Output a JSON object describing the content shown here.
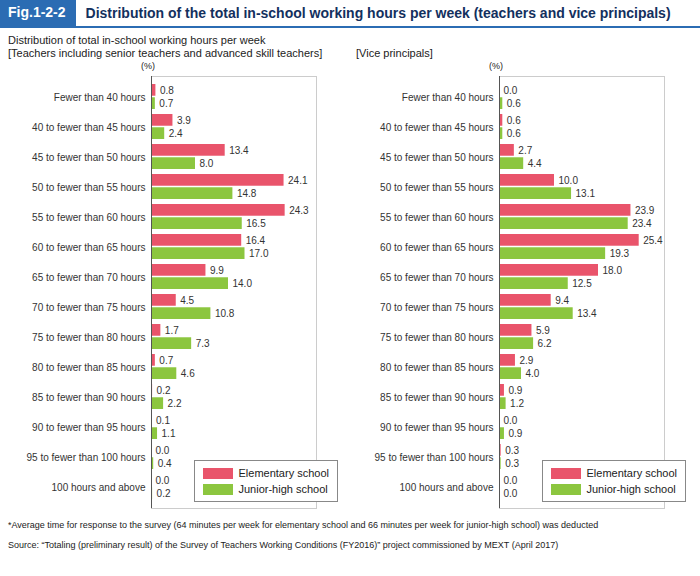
{
  "header": {
    "label": "Fig.1-2-2",
    "title": "Distribution of the total in-school working hours per week (teachers and vice principals)"
  },
  "subtitle": "Distribution of total in-school working hours per week",
  "footnote": "*Average time for response to the survey (64 minutes per week for elementary school and 66 minutes per week for junior-high school) was deducted",
  "source": "Source: “Totaling (preliminary result) of the Survey of Teachers Working Conditions (FY2016)” project commissioned by MEXT (April 2017)",
  "chart_data": [
    {
      "type": "bar",
      "orientation": "horizontal",
      "title": "[Teachers including senior teachers and advanced skill teachers]",
      "xlabel": "(%)",
      "categories": [
        "Fewer than 40 hours",
        "40 to fewer than 45 hours",
        "45 to fewer than 50 hours",
        "50 to fewer than 55 hours",
        "55 to fewer than 60 hours",
        "60 to fewer than 65 hours",
        "65 to fewer than 70 hours",
        "70 to fewer than 75 hours",
        "75 to fewer than 80 hours",
        "80 to fewer than 85 hours",
        "85 to fewer than 90 hours",
        "90 to fewer than 95 hours",
        "95 to fewer than 100 hours",
        "100 hours and above"
      ],
      "series": [
        {
          "name": "Elementary school",
          "color": "#e9546b",
          "values": [
            0.8,
            3.9,
            13.4,
            24.1,
            24.3,
            16.4,
            9.9,
            4.5,
            1.7,
            0.7,
            0.2,
            0.1,
            0.0,
            0.0
          ],
          "value_labels": [
            "0.8",
            "3.9",
            "13.4",
            "24.1",
            "24.3",
            "16.4",
            "9.9",
            "4.5",
            "1.7",
            "0.7",
            "0.2",
            "0.1",
            "0.0",
            "0.0"
          ]
        },
        {
          "name": "Junior-high school",
          "color": "#8cc63f",
          "values": [
            0.7,
            2.4,
            8.0,
            14.8,
            16.5,
            17.0,
            14.0,
            10.8,
            7.3,
            4.6,
            2.2,
            1.1,
            0.4,
            0.2
          ],
          "value_labels": [
            "0.7",
            "2.4",
            "8.0",
            "14.8",
            "16.5",
            "17.0",
            "14.0",
            "10.8",
            "7.3",
            "4.6",
            "2.2",
            "1.1",
            "0.4",
            "0.2"
          ]
        }
      ],
      "xlim": [
        0,
        30
      ],
      "xticks": [],
      "grid": false,
      "tick_labels": "y",
      "data_labels": true,
      "legend": "lower right"
    },
    {
      "type": "bar",
      "orientation": "horizontal",
      "title": "[Vice principals]",
      "xlabel": "(%)",
      "categories": [
        "Fewer than 40 hours",
        "40 to fewer than 45 hours",
        "45 to fewer than 50 hours",
        "50 to fewer than 55 hours",
        "55 to fewer than 60 hours",
        "60 to fewer than 65 hours",
        "65 to fewer than 70 hours",
        "70 to fewer than 75 hours",
        "75 to fewer than 80 hours",
        "80 to fewer than 85 hours",
        "85 to fewer than 90 hours",
        "90 to fewer than 95 hours",
        "95 to fewer than 100 hours",
        "100 hours and above"
      ],
      "series": [
        {
          "name": "Elementary school",
          "color": "#e9546b",
          "values": [
            0.0,
            0.6,
            2.7,
            10.0,
            23.9,
            25.4,
            18.0,
            9.4,
            5.9,
            2.9,
            0.9,
            0.0,
            0.3,
            0.0
          ],
          "value_labels": [
            "0.0",
            "0.6",
            "2.7",
            "10.0",
            "23.9",
            "25.4",
            "18.0",
            "9.4",
            "5.9",
            "2.9",
            "0.9",
            "0.0",
            "0.3",
            "0.0"
          ]
        },
        {
          "name": "Junior-high school",
          "color": "#8cc63f",
          "values": [
            0.6,
            0.6,
            4.4,
            13.1,
            23.4,
            19.3,
            12.5,
            13.4,
            6.2,
            4.0,
            1.2,
            0.9,
            0.3,
            0.0
          ],
          "value_labels": [
            "0.6",
            "0.6",
            "4.4",
            "13.1",
            "23.4",
            "19.3",
            "12.5",
            "13.4",
            "6.2",
            "4.0",
            "1.2",
            "0.9",
            "0.3",
            "0.0"
          ]
        }
      ],
      "xlim": [
        0,
        30
      ],
      "xticks": [],
      "grid": false,
      "tick_labels": "y",
      "data_labels": true,
      "legend": "lower right"
    }
  ]
}
